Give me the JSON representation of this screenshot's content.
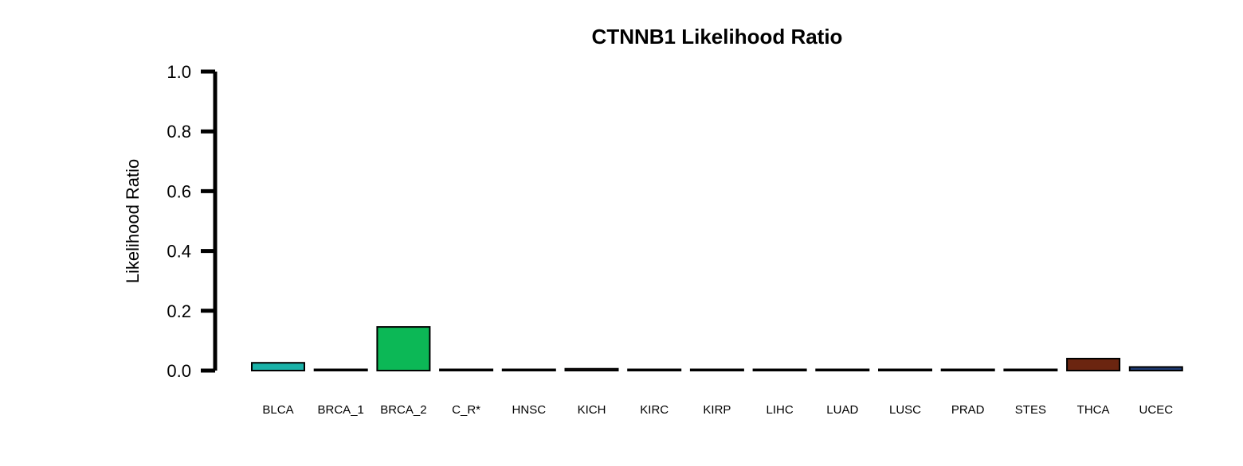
{
  "chart_data": {
    "type": "bar",
    "title": "CTNNB1 Likelihood Ratio",
    "xlabel": "",
    "ylabel": "Likelihood Ratio",
    "ylim": [
      0,
      1.0
    ],
    "yticks": [
      "0.0",
      "0.2",
      "0.4",
      "0.6",
      "0.8",
      "1.0"
    ],
    "grid": false,
    "categories": [
      "BLCA",
      "BRCA_1",
      "BRCA_2",
      "C_R*",
      "HNSC",
      "KICH",
      "KIRC",
      "KIRP",
      "LIHC",
      "LUAD",
      "LUSC",
      "PRAD",
      "STES",
      "THCA",
      "UCEC"
    ],
    "values": [
      0.026,
      0.003,
      0.146,
      0.003,
      0.003,
      0.006,
      0.003,
      0.002,
      0.002,
      0.002,
      0.003,
      0.003,
      0.003,
      0.04,
      0.012
    ],
    "colors": [
      "#1ab2a8",
      "#2a2a2a",
      "#0cb856",
      "#2a2a2a",
      "#2a2a2a",
      "#3a2a2a",
      "#2a2a2a",
      "#2a2a2a",
      "#2a2a2a",
      "#2a2a2a",
      "#2a2a2a",
      "#2a2a2a",
      "#2a2a2a",
      "#6b2510",
      "#1f3b73"
    ]
  }
}
